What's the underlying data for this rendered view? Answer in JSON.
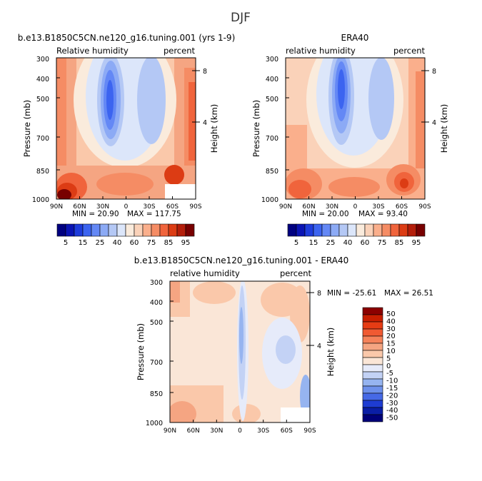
{
  "figure": {
    "title": "DJF"
  },
  "chart_data": [
    {
      "type": "heatmap",
      "title": "b.e13.B1850C5CN.ne120_g16.tuning.001 (yrs 1-9)",
      "left_label": "Relative humidity",
      "right_label": "percent",
      "ylabel": "Pressure (mb)",
      "y2label": "Height (km)",
      "x_ticks": [
        "90N",
        "60N",
        "30N",
        "0",
        "30S",
        "60S",
        "90S"
      ],
      "y_ticks": [
        "300",
        "400",
        "500",
        "700",
        "850",
        "1000"
      ],
      "y2_ticks": [
        "8",
        "4"
      ],
      "min_label": "MIN =  20.90",
      "max_label": "MAX = 117.75",
      "colorbar": {
        "labels": [
          "5",
          "15",
          "25",
          "40",
          "60",
          "75",
          "85",
          "95"
        ],
        "colors": [
          "#000080",
          "#0a14b4",
          "#1e3cdc",
          "#3c64f0",
          "#6488f5",
          "#8caaf5",
          "#b4c8f5",
          "#dce6fa",
          "#faebdc",
          "#fad2b9",
          "#faaf8c",
          "#f58c64",
          "#f0643c",
          "#dc3c14",
          "#b41e0a",
          "#780000"
        ]
      }
    },
    {
      "type": "heatmap",
      "title": "ERA40",
      "left_label": "relative humidity",
      "right_label": "percent",
      "ylabel": "Pressure (mb)",
      "y2label": "Height (km)",
      "x_ticks": [
        "90N",
        "60N",
        "30N",
        "0",
        "30S",
        "60S",
        "90S"
      ],
      "y_ticks": [
        "300",
        "400",
        "500",
        "700",
        "850",
        "1000"
      ],
      "y2_ticks": [
        "8",
        "4"
      ],
      "min_label": "MIN =  20.00",
      "max_label": "MAX =  93.40",
      "colorbar": {
        "labels": [
          "5",
          "15",
          "25",
          "40",
          "60",
          "75",
          "85",
          "95"
        ],
        "colors": [
          "#000080",
          "#0a14b4",
          "#1e3cdc",
          "#3c64f0",
          "#6488f5",
          "#8caaf5",
          "#b4c8f5",
          "#dce6fa",
          "#faebdc",
          "#fad2b9",
          "#faaf8c",
          "#f58c64",
          "#f0643c",
          "#dc3c14",
          "#b41e0a",
          "#780000"
        ]
      }
    },
    {
      "type": "heatmap",
      "title": "b.e13.B1850C5CN.ne120_g16.tuning.001 - ERA40",
      "left_label": "relative humidity",
      "right_label": "percent",
      "ylabel": "Pressure (mb)",
      "y2label": "Height (km)",
      "x_ticks": [
        "90N",
        "60N",
        "30N",
        "0",
        "30S",
        "60S",
        "90S"
      ],
      "y_ticks": [
        "300",
        "400",
        "500",
        "700",
        "850",
        "1000"
      ],
      "y2_ticks": [
        "8",
        "4"
      ],
      "min_label": "MIN = -25.61",
      "max_label": "MAX =  26.51",
      "colorbar": {
        "labels": [
          "50",
          "40",
          "30",
          "20",
          "15",
          "10",
          "5",
          "0",
          "-5",
          "-10",
          "-15",
          "-20",
          "-30",
          "-40",
          "-50"
        ],
        "colors": [
          "#8c0000",
          "#c81e00",
          "#e63c14",
          "#f05a32",
          "#f5825a",
          "#f5a582",
          "#fac8aa",
          "#fae6d7",
          "#e6ebfa",
          "#c3d2f5",
          "#96b4f0",
          "#6e91eb",
          "#4669e6",
          "#1e3cd2",
          "#0a1ea5",
          "#000078"
        ]
      }
    }
  ]
}
